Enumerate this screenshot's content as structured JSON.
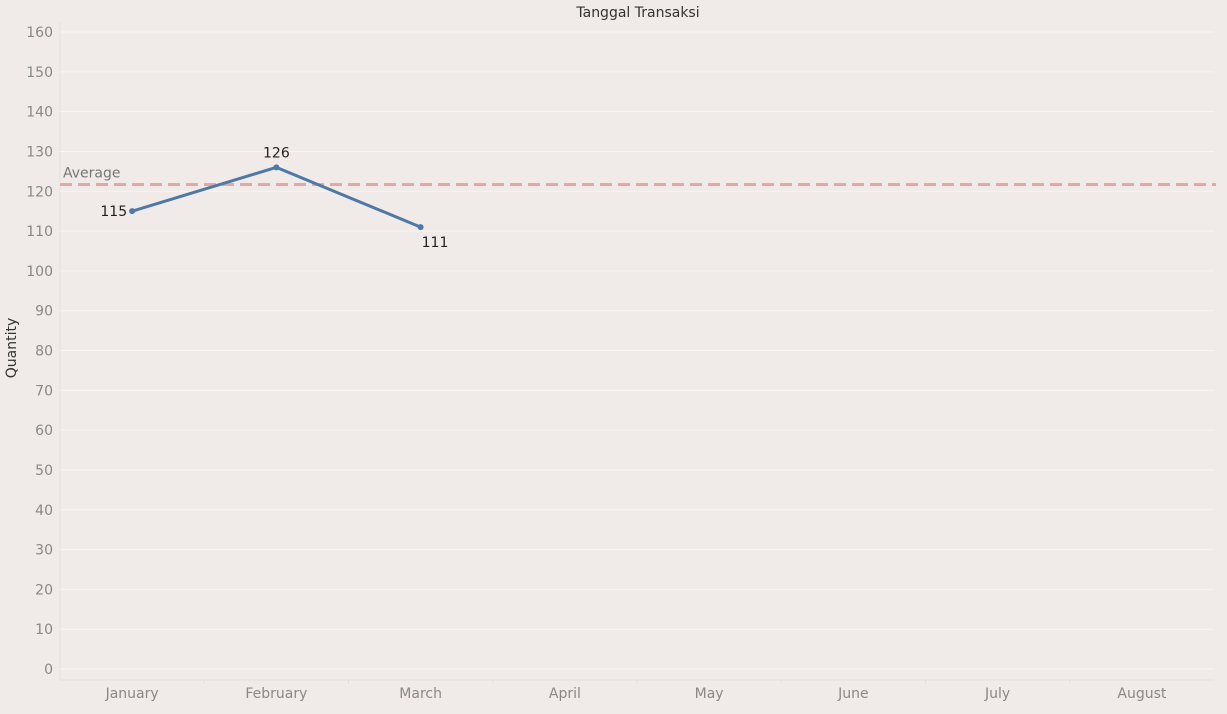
{
  "chart_data": {
    "type": "line",
    "title": "Tanggal Transaksi",
    "xlabel": "",
    "ylabel": "Quantity",
    "categories": [
      "January",
      "February",
      "March",
      "April",
      "May",
      "June",
      "July",
      "August"
    ],
    "series": [
      {
        "values": [
          115,
          126,
          111,
          null,
          null,
          null,
          null,
          null
        ],
        "color": "#4e79a7"
      }
    ],
    "data_labels": [
      "115",
      "126",
      "111"
    ],
    "reference_line": {
      "label": "Average",
      "value": 121.7,
      "color": "#e8a5a2",
      "style": "dashed"
    },
    "ylim": [
      0,
      160
    ],
    "yticks": [
      0,
      10,
      20,
      30,
      40,
      50,
      60,
      70,
      80,
      90,
      100,
      110,
      120,
      130,
      140,
      150,
      160
    ],
    "grid": true,
    "legend": "none"
  },
  "colors": {
    "background": "#f0ebe8",
    "gridline": "#f7f4f2",
    "line": "#4e79a7",
    "average": "#e8a5a2"
  }
}
